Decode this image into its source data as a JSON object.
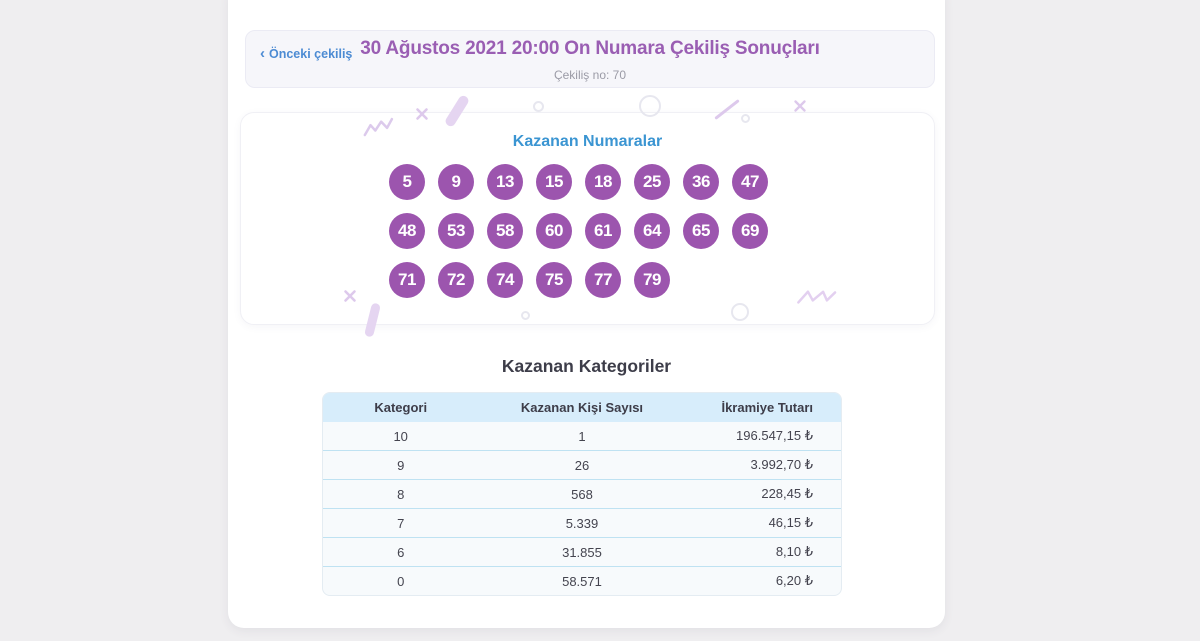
{
  "header": {
    "back_chevron": "‹",
    "back_link": "Önceki çekiliş",
    "title": "30 Ağustos 2021 20:00 On Numara Çekiliş Sonuçları",
    "draw_no": "Çekiliş no: 70"
  },
  "winning_numbers": {
    "title": "Kazanan Numaralar",
    "rows": [
      [
        5,
        9,
        13,
        15,
        18,
        25,
        36,
        47
      ],
      [
        48,
        53,
        58,
        60,
        61,
        64,
        65,
        69
      ],
      [
        71,
        72,
        74,
        75,
        77,
        79
      ]
    ]
  },
  "categories": {
    "title": "Kazanan Kategoriler",
    "columns": [
      "Kategori",
      "Kazanan Kişi Sayısı",
      "İkramiye Tutarı"
    ],
    "rows": [
      [
        "10",
        "1",
        "196.547,15 ₺"
      ],
      [
        "9",
        "26",
        "3.992,70 ₺"
      ],
      [
        "8",
        "568",
        "228,45 ₺"
      ],
      [
        "7",
        "5.339",
        "46,15 ₺"
      ],
      [
        "6",
        "31.855",
        "8,10 ₺"
      ],
      [
        "0",
        "58.571",
        "6,20 ₺"
      ]
    ]
  },
  "colors": {
    "page_bg": "#efeef0",
    "link_blue": "#4c8bd3",
    "title_purple": "#9a5eb3",
    "heading_blue": "#3b95d2",
    "ball_purple": "#9c55ae",
    "table_header_bg": "#d7edfb",
    "table_separator": "#bfe2f2",
    "text_dark": "#3d3d49",
    "muted_gray": "#9b9ba6"
  }
}
